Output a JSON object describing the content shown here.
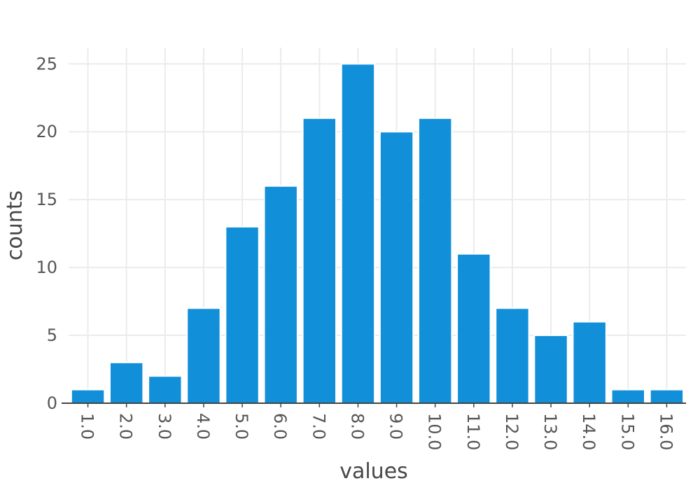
{
  "chart_data": {
    "type": "bar",
    "title": "",
    "xlabel": "values",
    "ylabel": "counts",
    "categories": [
      "1.0",
      "2.0",
      "3.0",
      "4.0",
      "5.0",
      "6.0",
      "7.0",
      "8.0",
      "9.0",
      "10.0",
      "11.0",
      "12.0",
      "13.0",
      "14.0",
      "15.0",
      "16.0"
    ],
    "values": [
      1,
      3,
      2,
      7,
      13,
      16,
      21,
      25,
      20,
      21,
      11,
      7,
      5,
      6,
      1,
      1
    ],
    "ylim": [
      0,
      26.2
    ],
    "yticks": [
      0,
      5,
      10,
      15,
      20,
      25
    ],
    "grid": true,
    "legend": "none",
    "colors": {
      "bar": "#118fd9",
      "grid": "#ebebeb",
      "axis": "#444444",
      "text": "#555555"
    }
  }
}
